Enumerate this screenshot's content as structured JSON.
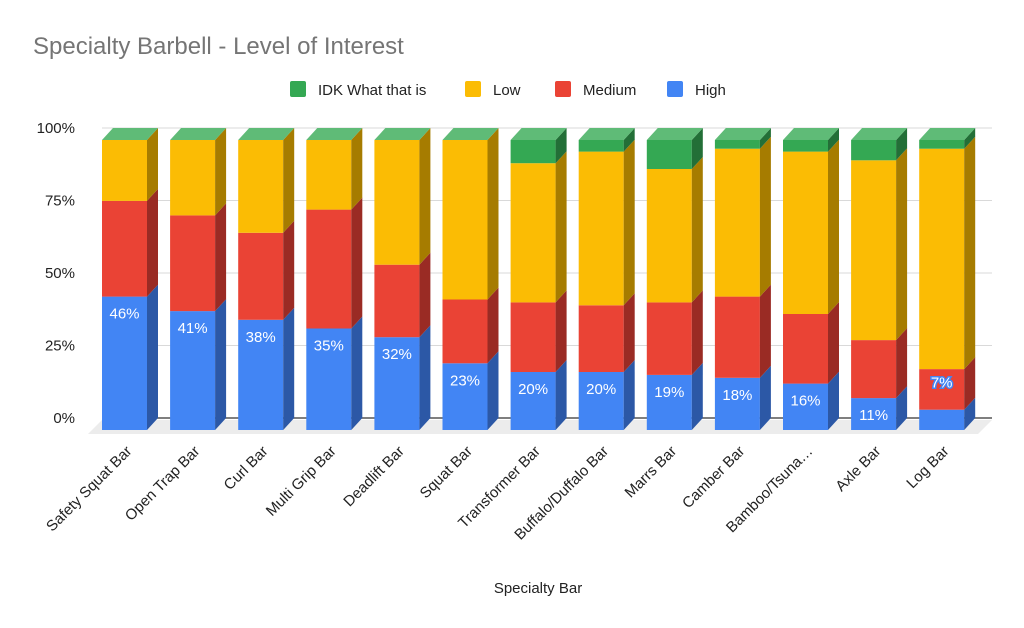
{
  "chart_data": {
    "type": "bar",
    "stacked": "percent",
    "style": "3d",
    "title": "Specialty Barbell - Level of Interest",
    "xlabel": "Specialty Bar",
    "ylabel": "",
    "ylim": [
      0,
      100
    ],
    "yticks": [
      "0%",
      "25%",
      "50%",
      "75%",
      "100%"
    ],
    "grid": true,
    "legend_position": "top",
    "categories": [
      "Safety Squat Bar",
      "Open Trap Bar",
      "Curl Bar",
      "Multi Grip Bar",
      "Deadlift Bar",
      "Squat Bar",
      "Transformer Bar",
      "Buffalo/Duffalo Bar",
      "Marrs Bar",
      "Camber Bar",
      "Bamboo/Tsuna…",
      "Axle Bar",
      "Log Bar"
    ],
    "series": [
      {
        "name": "High",
        "color": "#4285f4",
        "side": "#2c58a6",
        "values": [
          46,
          41,
          38,
          35,
          32,
          23,
          20,
          20,
          19,
          18,
          16,
          11,
          7
        ],
        "labels": [
          "46%",
          "41%",
          "38%",
          "35%",
          "32%",
          "23%",
          "20%",
          "20%",
          "19%",
          "18%",
          "16%",
          "11%",
          "7%"
        ]
      },
      {
        "name": "Medium",
        "color": "#ea4335",
        "side": "#9a2b24",
        "values": [
          33,
          33,
          30,
          41,
          25,
          22,
          24,
          23,
          25,
          28,
          24,
          20,
          14
        ]
      },
      {
        "name": "Low",
        "color": "#fbbc04",
        "side": "#a67c00",
        "values": [
          21,
          26,
          32,
          24,
          43,
          55,
          48,
          53,
          46,
          51,
          56,
          62,
          76
        ]
      },
      {
        "name": "IDK What that is",
        "color": "#34a853",
        "side": "#236f37",
        "top": "#5fbb77",
        "values": [
          0,
          0,
          0,
          0,
          0,
          0,
          8,
          4,
          10,
          3,
          4,
          7,
          3
        ]
      }
    ],
    "legend": [
      "IDK What that is",
      "Low",
      "Medium",
      "High"
    ]
  }
}
